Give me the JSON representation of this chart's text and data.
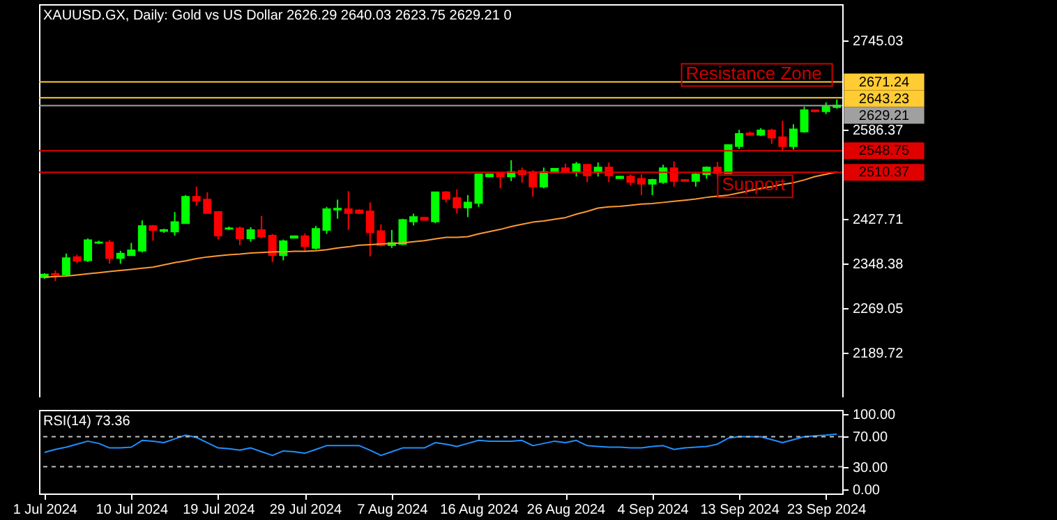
{
  "chart_data": [
    {
      "type": "candlestick",
      "title": "XAUUSD.GX, Daily:  Gold vs US Dollar  2626.29 2640.03 2623.75 2629.21  0",
      "categories": [
        null,
        null,
        null,
        null,
        null,
        null,
        null,
        null,
        null,
        null,
        null,
        null,
        null,
        null,
        null,
        null,
        null,
        null,
        null,
        null,
        null,
        null,
        null,
        null,
        null,
        null,
        null,
        null,
        null,
        null,
        null,
        null,
        null,
        null,
        null,
        null,
        null,
        null,
        null,
        null,
        null,
        null,
        null,
        null,
        null,
        null,
        null,
        null,
        null,
        null,
        null,
        null,
        null,
        null,
        null,
        null,
        null,
        null,
        null,
        null,
        null,
        null,
        null,
        null,
        null,
        null,
        null,
        null,
        null,
        null,
        null,
        null,
        null,
        null
      ],
      "ohlc": [
        [
          2324,
          2331,
          2321,
          2329
        ],
        [
          2330,
          2336,
          2317,
          2328
        ],
        [
          2329,
          2366,
          2327,
          2358
        ],
        [
          2360,
          2364,
          2349,
          2353
        ],
        [
          2354,
          2393,
          2351,
          2390
        ],
        [
          2385,
          2389,
          2383,
          2386
        ],
        [
          2386,
          2390,
          2348,
          2358
        ],
        [
          2358,
          2371,
          2348,
          2366
        ],
        [
          2363,
          2385,
          2362,
          2372
        ],
        [
          2371,
          2425,
          2368,
          2415
        ],
        [
          2415,
          2417,
          2389,
          2408
        ],
        [
          2406,
          2410,
          2403,
          2408
        ],
        [
          2405,
          2440,
          2398,
          2422
        ],
        [
          2420,
          2470,
          2419,
          2467
        ],
        [
          2467,
          2485,
          2451,
          2460
        ],
        [
          2462,
          2475,
          2438,
          2438
        ],
        [
          2440,
          2440,
          2391,
          2398
        ],
        [
          2410,
          2414,
          2408,
          2411
        ],
        [
          2411,
          2414,
          2381,
          2393
        ],
        [
          2393,
          2413,
          2387,
          2408
        ],
        [
          2408,
          2433,
          2393,
          2396
        ],
        [
          2398,
          2401,
          2351,
          2363
        ],
        [
          2363,
          2391,
          2354,
          2388
        ],
        [
          2394,
          2398,
          2393,
          2397
        ],
        [
          2397,
          2402,
          2371,
          2379
        ],
        [
          2376,
          2415,
          2373,
          2410
        ],
        [
          2408,
          2449,
          2401,
          2445
        ],
        [
          2444,
          2462,
          2428,
          2446
        ],
        [
          2445,
          2477,
          2408,
          2438
        ],
        [
          2443,
          2445,
          2437,
          2438
        ],
        [
          2441,
          2457,
          2361,
          2404
        ],
        [
          2406,
          2418,
          2379,
          2381
        ],
        [
          2381,
          2408,
          2376,
          2385
        ],
        [
          2383,
          2428,
          2381,
          2426
        ],
        [
          2423,
          2437,
          2416,
          2431
        ],
        [
          2430,
          2431,
          2425,
          2426
        ],
        [
          2423,
          2475,
          2420,
          2475
        ],
        [
          2475,
          2477,
          2457,
          2463
        ],
        [
          2465,
          2480,
          2437,
          2448
        ],
        [
          2448,
          2470,
          2431,
          2457
        ],
        [
          2456,
          2507,
          2449,
          2507
        ],
        [
          2503,
          2508,
          2502,
          2507
        ],
        [
          2509,
          2511,
          2482,
          2503
        ],
        [
          2503,
          2532,
          2495,
          2511
        ],
        [
          2513,
          2519,
          2492,
          2507
        ],
        [
          2511,
          2514,
          2467,
          2485
        ],
        [
          2485,
          2519,
          2482,
          2511
        ],
        [
          2510,
          2518,
          2510,
          2517
        ],
        [
          2518,
          2526,
          2509,
          2511
        ],
        [
          2511,
          2529,
          2503,
          2525
        ],
        [
          2524,
          2524,
          2493,
          2505
        ],
        [
          2510,
          2528,
          2503,
          2519
        ],
        [
          2519,
          2528,
          2493,
          2505
        ],
        [
          2500,
          2504,
          2500,
          2503
        ],
        [
          2503,
          2507,
          2487,
          2493
        ],
        [
          2499,
          2507,
          2470,
          2490
        ],
        [
          2490,
          2499,
          2470,
          2497
        ],
        [
          2493,
          2524,
          2490,
          2518
        ],
        [
          2518,
          2530,
          2485,
          2495
        ],
        [
          2497,
          2498,
          2494,
          2495
        ],
        [
          2495,
          2509,
          2485,
          2507
        ],
        [
          2507,
          2521,
          2499,
          2519
        ],
        [
          2519,
          2529,
          2499,
          2509
        ],
        [
          2509,
          2559,
          2509,
          2559
        ],
        [
          2557,
          2586,
          2552,
          2579
        ],
        [
          2580,
          2583,
          2576,
          2577
        ],
        [
          2577,
          2589,
          2575,
          2585
        ],
        [
          2585,
          2588,
          2561,
          2572
        ],
        [
          2573,
          2602,
          2548,
          2557
        ],
        [
          2557,
          2596,
          2551,
          2587
        ],
        [
          2583,
          2627,
          2581,
          2621
        ],
        [
          2621,
          2622,
          2617,
          2619
        ],
        [
          2619,
          2635,
          2614,
          2627
        ],
        [
          2626.29,
          2640.03,
          2623.75,
          2629.21
        ]
      ],
      "colors": [
        "#00ff00",
        "#ff0000",
        "#00ff00",
        "#ff0000",
        "#00ff00",
        "#00ff00",
        "#ff0000",
        "#00ff00",
        "#00ff00",
        "#00ff00",
        "#ff0000",
        "#00ff00",
        "#00ff00",
        "#00ff00",
        "#ff0000",
        "#ff0000",
        "#ff0000",
        "#00ff00",
        "#ff0000",
        "#00ff00",
        "#ff0000",
        "#ff0000",
        "#00ff00",
        "#00ff00",
        "#ff0000",
        "#00ff00",
        "#00ff00",
        "#00ff00",
        "#ff0000",
        "#ff0000",
        "#ff0000",
        "#ff0000",
        "#00ff00",
        "#00ff00",
        "#00ff00",
        "#ff0000",
        "#00ff00",
        "#ff0000",
        "#ff0000",
        "#00ff00",
        "#00ff00",
        "#00ff00",
        "#ff0000",
        "#00ff00",
        "#ff0000",
        "#ff0000",
        "#00ff00",
        "#00ff00",
        "#ff0000",
        "#00ff00",
        "#ff0000",
        "#00ff00",
        "#ff0000",
        "#00ff00",
        "#ff0000",
        "#ff0000",
        "#00ff00",
        "#00ff00",
        "#ff0000",
        "#ff0000",
        "#00ff00",
        "#00ff00",
        "#ff0000",
        "#00ff00",
        "#00ff00",
        "#ff0000",
        "#00ff00",
        "#ff0000",
        "#ff0000",
        "#00ff00",
        "#00ff00",
        "#ff0000",
        "#00ff00",
        "#00ff00"
      ],
      "series": [
        {
          "type": "line",
          "color": "#ff9933",
          "values": [
            2324,
            2325,
            2326,
            2328,
            2330,
            2332,
            2334,
            2336,
            2338,
            2340,
            2342,
            2346,
            2350,
            2353,
            2357,
            2360,
            2362,
            2364,
            2365,
            2367,
            2368,
            2369,
            2369,
            2370,
            2370,
            2371,
            2373,
            2376,
            2378,
            2381,
            2382,
            2383,
            2384,
            2385,
            2387,
            2389,
            2392,
            2395,
            2395,
            2396,
            2401,
            2405,
            2409,
            2414,
            2418,
            2422,
            2424,
            2427,
            2430,
            2436,
            2441,
            2447,
            2449,
            2450,
            2452,
            2454,
            2455,
            2457,
            2459,
            2461,
            2463,
            2466,
            2468,
            2470,
            2474,
            2478,
            2482,
            2485,
            2489,
            2492,
            2497,
            2503,
            2507,
            2511
          ]
        }
      ],
      "ylim": [
        2110.4,
        2809.5
      ],
      "yticks": [
        2745.03,
        2586.37,
        2427.71,
        2348.38,
        2269.05,
        2189.72
      ],
      "ref_lines": [
        {
          "axis": "y",
          "value": 2671.24,
          "label": "2671.24",
          "color": "#ffcc33"
        },
        {
          "axis": "y",
          "value": 2643.23,
          "label": "2643.23",
          "color": "#ffcc33"
        },
        {
          "axis": "y",
          "value": 2629.21,
          "label": "2629.21",
          "color": "#a0a0a0"
        },
        {
          "axis": "y",
          "value": 2548.75,
          "label": "2548.75",
          "color": "#e00000"
        },
        {
          "axis": "y",
          "value": 2510.37,
          "label": "2510.37",
          "color": "#e00000"
        }
      ],
      "annotations": [
        {
          "text": "Resistance Zone",
          "y": 2671.24
        },
        {
          "text": "Support",
          "y": 2510.37
        }
      ],
      "tick_labels": "y"
    },
    {
      "type": "line",
      "title": "RSI(14) 73.36",
      "categories": [
        "1 Jul 2024",
        null,
        null,
        null,
        null,
        null,
        null,
        null,
        "10 Jul 2024",
        null,
        null,
        null,
        null,
        null,
        null,
        null,
        "19 Jul 2024",
        null,
        null,
        null,
        null,
        null,
        null,
        null,
        "29 Jul 2024",
        null,
        null,
        null,
        null,
        null,
        null,
        null,
        "7 Aug 2024",
        null,
        null,
        null,
        null,
        null,
        null,
        null,
        "16 Aug 2024",
        null,
        null,
        null,
        null,
        null,
        null,
        null,
        "26 Aug 2024",
        null,
        null,
        null,
        null,
        null,
        null,
        null,
        "4 Sep 2024",
        null,
        null,
        null,
        null,
        null,
        null,
        null,
        "13 Sep 2024",
        null,
        null,
        null,
        null,
        null,
        null,
        null,
        "23 Sep 2024",
        null
      ],
      "series": [
        {
          "color": "#1e90ff",
          "values": [
            49,
            53,
            56,
            60,
            64,
            61,
            55,
            55,
            56,
            65,
            64,
            62,
            67,
            72,
            69,
            62,
            55,
            54,
            52,
            55,
            50,
            45,
            51,
            50,
            48,
            53,
            58,
            58,
            58,
            58,
            52,
            45,
            50,
            55,
            55,
            55,
            62,
            60,
            57,
            61,
            65,
            64,
            64,
            64,
            65,
            58,
            61,
            64,
            62,
            65,
            58,
            57,
            56,
            56,
            55,
            55,
            57,
            58,
            53,
            55,
            56,
            57,
            60,
            68,
            70,
            70,
            70,
            66,
            62,
            66,
            70,
            71,
            72,
            73.36
          ]
        }
      ],
      "ylim": [
        -5.6,
        105.6
      ],
      "yticks": [
        {
          "value": 100,
          "label": "100.00"
        },
        {
          "value": 70,
          "label": "70.00"
        },
        {
          "value": 30,
          "label": "30.00"
        },
        {
          "value": 0,
          "label": "0.00"
        }
      ],
      "ref_lines": [
        {
          "axis": "y",
          "value": 70,
          "color": "#c0c0c0",
          "line_style": "dashed"
        },
        {
          "axis": "y",
          "value": 30,
          "color": "#c0c0c0",
          "line_style": "dashed"
        }
      ]
    }
  ]
}
